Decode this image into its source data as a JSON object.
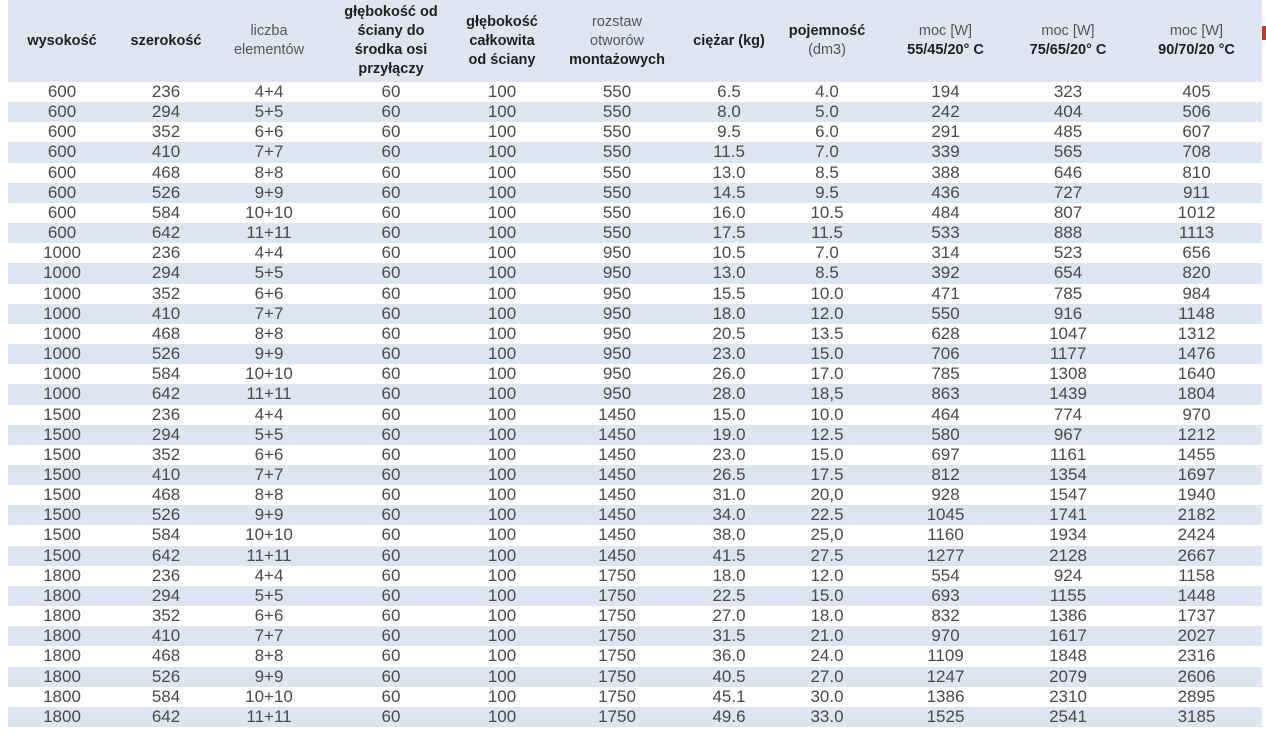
{
  "header": {
    "columns": [
      [
        "wysokość"
      ],
      [
        "szerokość"
      ],
      [
        "liczba",
        "elementów"
      ],
      [
        "głębokość od",
        "ściany do",
        "środka osi",
        "przyłączy"
      ],
      [
        "głębokość",
        "całkowita",
        "od ściany"
      ],
      [
        "rozstaw",
        "otworów",
        "montażowych"
      ],
      [
        "ciężar (kg)"
      ],
      [
        "pojemność",
        "(dm3)"
      ],
      [
        "moc [W]",
        "55/45/20° C"
      ],
      [
        "moc [W]",
        "75/65/20° C"
      ],
      [
        "moc [W]",
        "90/70/20 °C"
      ]
    ]
  },
  "table": {
    "rows": [
      [
        "600",
        "236",
        "4+4",
        "60",
        "100",
        "550",
        "6.5",
        "4.0",
        "194",
        "323",
        "405"
      ],
      [
        "600",
        "294",
        "5+5",
        "60",
        "100",
        "550",
        "8.0",
        "5.0",
        "242",
        "404",
        "506"
      ],
      [
        "600",
        "352",
        "6+6",
        "60",
        "100",
        "550",
        "9.5",
        "6.0",
        "291",
        "485",
        "607"
      ],
      [
        "600",
        "410",
        "7+7",
        "60",
        "100",
        "550",
        "11.5",
        "7.0",
        "339",
        "565",
        "708"
      ],
      [
        "600",
        "468",
        "8+8",
        "60",
        "100",
        "550",
        "13.0",
        "8.5",
        "388",
        "646",
        "810"
      ],
      [
        "600",
        "526",
        "9+9",
        "60",
        "100",
        "550",
        "14.5",
        "9.5",
        "436",
        "727",
        "911"
      ],
      [
        "600",
        "584",
        "10+10",
        "60",
        "100",
        "550",
        "16.0",
        "10.5",
        "484",
        "807",
        "1012"
      ],
      [
        "600",
        "642",
        "11+11",
        "60",
        "100",
        "550",
        "17.5",
        "11.5",
        "533",
        "888",
        "1113"
      ],
      [
        "1000",
        "236",
        "4+4",
        "60",
        "100",
        "950",
        "10.5",
        "7.0",
        "314",
        "523",
        "656"
      ],
      [
        "1000",
        "294",
        "5+5",
        "60",
        "100",
        "950",
        "13.0",
        "8.5",
        "392",
        "654",
        "820"
      ],
      [
        "1000",
        "352",
        "6+6",
        "60",
        "100",
        "950",
        "15.5",
        "10.0",
        "471",
        "785",
        "984"
      ],
      [
        "1000",
        "410",
        "7+7",
        "60",
        "100",
        "950",
        "18.0",
        "12.0",
        "550",
        "916",
        "1148"
      ],
      [
        "1000",
        "468",
        "8+8",
        "60",
        "100",
        "950",
        "20.5",
        "13.5",
        "628",
        "1047",
        "1312"
      ],
      [
        "1000",
        "526",
        "9+9",
        "60",
        "100",
        "950",
        "23.0",
        "15.0",
        "706",
        "1177",
        "1476"
      ],
      [
        "1000",
        "584",
        "10+10",
        "60",
        "100",
        "950",
        "26.0",
        "17.0",
        "785",
        "1308",
        "1640"
      ],
      [
        "1000",
        "642",
        "11+11",
        "60",
        "100",
        "950",
        "28.0",
        "18,5",
        "863",
        "1439",
        "1804"
      ],
      [
        "1500",
        "236",
        "4+4",
        "60",
        "100",
        "1450",
        "15.0",
        "10.0",
        "464",
        "774",
        "970"
      ],
      [
        "1500",
        "294",
        "5+5",
        "60",
        "100",
        "1450",
        "19.0",
        "12.5",
        "580",
        "967",
        "1212"
      ],
      [
        "1500",
        "352",
        "6+6",
        "60",
        "100",
        "1450",
        "23.0",
        "15.0",
        "697",
        "1161",
        "1455"
      ],
      [
        "1500",
        "410",
        "7+7",
        "60",
        "100",
        "1450",
        "26.5",
        "17.5",
        "812",
        "1354",
        "1697"
      ],
      [
        "1500",
        "468",
        "8+8",
        "60",
        "100",
        "1450",
        "31.0",
        "20,0",
        "928",
        "1547",
        "1940"
      ],
      [
        "1500",
        "526",
        "9+9",
        "60",
        "100",
        "1450",
        "34.0",
        "22.5",
        "1045",
        "1741",
        "2182"
      ],
      [
        "1500",
        "584",
        "10+10",
        "60",
        "100",
        "1450",
        "38.0",
        "25,0",
        "1160",
        "1934",
        "2424"
      ],
      [
        "1500",
        "642",
        "11+11",
        "60",
        "100",
        "1450",
        "41.5",
        "27.5",
        "1277",
        "2128",
        "2667"
      ],
      [
        "1800",
        "236",
        "4+4",
        "60",
        "100",
        "1750",
        "18.0",
        "12.0",
        "554",
        "924",
        "1158"
      ],
      [
        "1800",
        "294",
        "5+5",
        "60",
        "100",
        "1750",
        "22.5",
        "15.0",
        "693",
        "1155",
        "1448"
      ],
      [
        "1800",
        "352",
        "6+6",
        "60",
        "100",
        "1750",
        "27.0",
        "18.0",
        "832",
        "1386",
        "1737"
      ],
      [
        "1800",
        "410",
        "7+7",
        "60",
        "100",
        "1750",
        "31.5",
        "21.0",
        "970",
        "1617",
        "2027"
      ],
      [
        "1800",
        "468",
        "8+8",
        "60",
        "100",
        "1750",
        "36.0",
        "24.0",
        "1109",
        "1848",
        "2316"
      ],
      [
        "1800",
        "526",
        "9+9",
        "60",
        "100",
        "1750",
        "40.5",
        "27.0",
        "1247",
        "2079",
        "2606"
      ],
      [
        "1800",
        "584",
        "10+10",
        "60",
        "100",
        "1750",
        "45.1",
        "30.0",
        "1386",
        "2310",
        "2895"
      ],
      [
        "1800",
        "642",
        "11+11",
        "60",
        "100",
        "1750",
        "49.6",
        "33.0",
        "1525",
        "2541",
        "3185"
      ]
    ]
  }
}
